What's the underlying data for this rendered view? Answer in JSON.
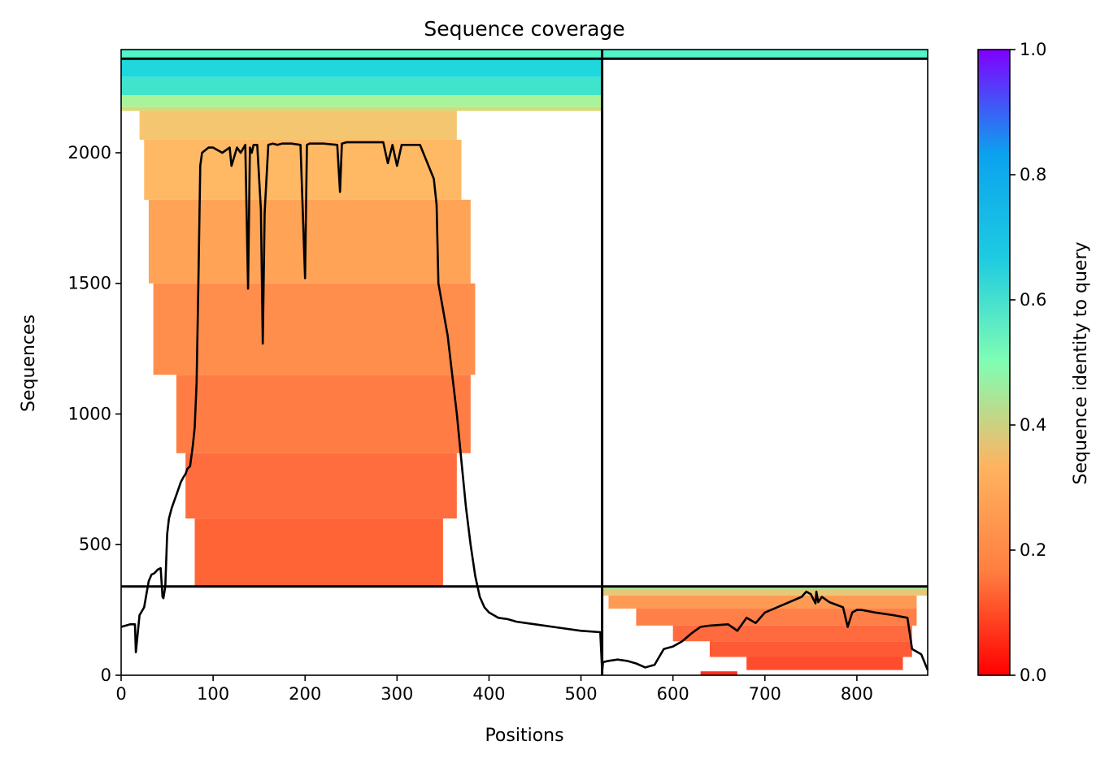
{
  "chart_data": {
    "type": "heatmap",
    "title": "Sequence coverage",
    "xlabel": "Positions",
    "ylabel": "Sequences",
    "xlim": [
      0,
      877
    ],
    "ylim": [
      0,
      2395
    ],
    "x_ticks": [
      0,
      100,
      200,
      300,
      400,
      500,
      600,
      700,
      800
    ],
    "y_ticks": [
      0,
      500,
      1000,
      1500,
      2000
    ],
    "colorbar": {
      "label": "Sequence identity to query",
      "range": [
        0,
        1
      ],
      "ticks": [
        "0.0",
        "0.2",
        "0.4",
        "0.6",
        "0.8",
        "1.0"
      ],
      "colormap": "rainbow_r",
      "stops": [
        "#ff0000",
        "#ff7f41",
        "#ffb360",
        "#80feb3",
        "#1ecbe1",
        "#0ba2ef",
        "#8000ff"
      ]
    },
    "chain_boundaries": {
      "x": [
        523
      ],
      "y": [
        340,
        2360
      ]
    },
    "coverage_line": {
      "x": [
        0,
        5,
        10,
        15,
        16,
        20,
        25,
        27,
        30,
        33,
        36,
        40,
        43,
        45,
        46,
        48,
        50,
        52,
        55,
        60,
        65,
        68,
        70,
        72,
        75,
        78,
        80,
        82,
        84,
        86,
        88,
        95,
        100,
        110,
        118,
        120,
        126,
        130,
        135,
        138,
        140,
        142,
        144,
        148,
        152,
        154,
        156,
        160,
        165,
        170,
        175,
        185,
        195,
        200,
        202,
        205,
        210,
        220,
        235,
        238,
        240,
        245,
        250,
        260,
        270,
        285,
        290,
        295,
        300,
        305,
        310,
        325,
        340,
        343,
        345,
        350,
        355,
        360,
        365,
        370,
        375,
        380,
        385,
        390,
        395,
        400,
        410,
        420,
        430,
        450,
        480,
        500,
        521,
        523,
        524,
        530,
        540,
        550,
        560,
        570,
        580,
        585,
        590,
        600,
        610,
        620,
        630,
        640,
        660,
        670,
        680,
        690,
        700,
        720,
        740,
        745,
        750,
        755,
        756,
        758,
        762,
        770,
        785,
        790,
        795,
        800,
        805,
        820,
        840,
        855,
        860,
        870,
        877
      ],
      "y": [
        185,
        190,
        195,
        195,
        88,
        230,
        260,
        300,
        360,
        385,
        390,
        405,
        410,
        300,
        295,
        340,
        540,
        600,
        640,
        690,
        740,
        760,
        770,
        790,
        800,
        880,
        950,
        1120,
        1500,
        1950,
        2000,
        2020,
        2020,
        2000,
        2020,
        1950,
        2020,
        2000,
        2030,
        1480,
        2020,
        2000,
        2030,
        2030,
        1780,
        1270,
        1770,
        2030,
        2035,
        2030,
        2035,
        2035,
        2030,
        1520,
        2030,
        2035,
        2035,
        2035,
        2030,
        1850,
        2035,
        2040,
        2040,
        2040,
        2040,
        2040,
        1960,
        2030,
        1950,
        2030,
        2030,
        2030,
        1900,
        1800,
        1500,
        1400,
        1300,
        1150,
        1000,
        820,
        640,
        500,
        380,
        300,
        260,
        240,
        220,
        215,
        205,
        195,
        180,
        170,
        165,
        15,
        50,
        55,
        60,
        55,
        45,
        30,
        40,
        70,
        100,
        110,
        130,
        160,
        185,
        190,
        195,
        170,
        220,
        200,
        240,
        270,
        300,
        320,
        310,
        275,
        320,
        280,
        300,
        280,
        260,
        185,
        240,
        250,
        250,
        240,
        230,
        220,
        100,
        80,
        20
      ]
    },
    "coverage_blocks": [
      {
        "x0": 0,
        "x1": 523,
        "y0": 2360,
        "y1": 2395,
        "color": "#52f4c9"
      },
      {
        "x0": 523,
        "x1": 877,
        "y0": 2360,
        "y1": 2395,
        "color": "#52f4c9"
      },
      {
        "x0": 0,
        "x1": 523,
        "y0": 2290,
        "y1": 2360,
        "color": "#1ed8dd"
      },
      {
        "x0": 0,
        "x1": 523,
        "y0": 2220,
        "y1": 2290,
        "color": "#40e3cc"
      },
      {
        "x0": 0,
        "x1": 523,
        "y0": 2175,
        "y1": 2220,
        "color": "#a9f49b"
      },
      {
        "x0": 0,
        "x1": 523,
        "y0": 2160,
        "y1": 2175,
        "color": "#d6db7a"
      },
      {
        "x0": 20,
        "x1": 365,
        "y0": 2050,
        "y1": 2160,
        "color": "#f4c670"
      },
      {
        "x0": 25,
        "x1": 370,
        "y0": 1820,
        "y1": 2050,
        "color": "#ffb864"
      },
      {
        "x0": 30,
        "x1": 380,
        "y0": 1500,
        "y1": 1820,
        "color": "#ffa356"
      },
      {
        "x0": 35,
        "x1": 385,
        "y0": 1150,
        "y1": 1500,
        "color": "#ff8d4c"
      },
      {
        "x0": 60,
        "x1": 380,
        "y0": 850,
        "y1": 1150,
        "color": "#ff7d44"
      },
      {
        "x0": 70,
        "x1": 365,
        "y0": 600,
        "y1": 850,
        "color": "#ff6d3e"
      },
      {
        "x0": 80,
        "x1": 350,
        "y0": 340,
        "y1": 600,
        "color": "#ff6436"
      },
      {
        "x0": 523,
        "x1": 877,
        "y0": 330,
        "y1": 340,
        "color": "#a9f49b"
      },
      {
        "x0": 523,
        "x1": 877,
        "y0": 305,
        "y1": 330,
        "color": "#e8c878"
      },
      {
        "x0": 530,
        "x1": 865,
        "y0": 255,
        "y1": 305,
        "color": "#ff9a55"
      },
      {
        "x0": 560,
        "x1": 865,
        "y0": 190,
        "y1": 255,
        "color": "#ff7f48"
      },
      {
        "x0": 600,
        "x1": 860,
        "y0": 130,
        "y1": 190,
        "color": "#ff6a3f"
      },
      {
        "x0": 640,
        "x1": 860,
        "y0": 70,
        "y1": 130,
        "color": "#ff5a36"
      },
      {
        "x0": 680,
        "x1": 850,
        "y0": 20,
        "y1": 70,
        "color": "#ff4c2c"
      },
      {
        "x0": 630,
        "x1": 670,
        "y0": 0,
        "y1": 15,
        "color": "#ff3020"
      }
    ]
  }
}
